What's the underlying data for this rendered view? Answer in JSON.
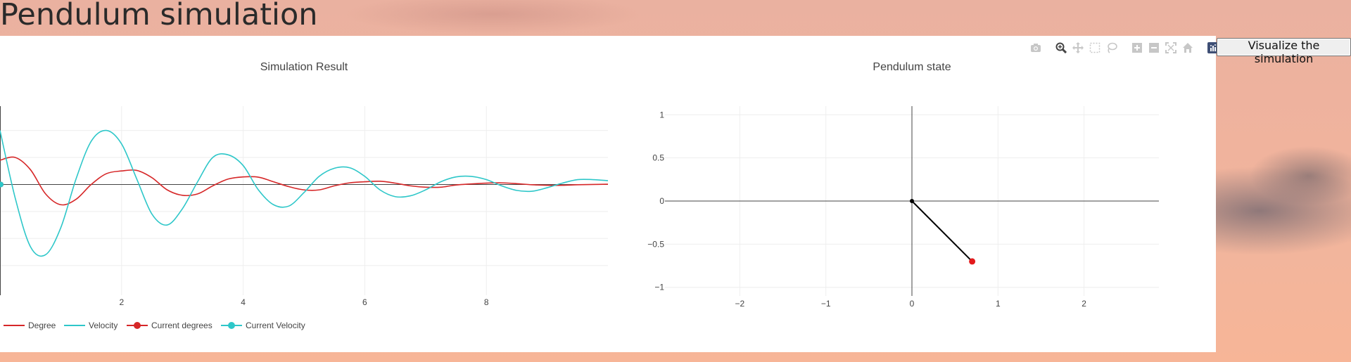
{
  "page": {
    "title": "Pendulum simulation"
  },
  "button": {
    "visualize_label": "Visualize the simulation"
  },
  "modebar": {
    "tools": [
      "camera-icon",
      "zoom-icon",
      "pan-icon",
      "box-select-icon",
      "lasso-select-icon",
      "zoom-in-icon",
      "zoom-out-icon",
      "autoscale-icon",
      "reset-axes-icon",
      "plotly-logo-icon"
    ]
  },
  "colors": {
    "degree": "#d62728",
    "velocity": "#2ec7c9",
    "bob": "#e31a1c"
  },
  "chart_data": [
    {
      "type": "line",
      "title": "Simulation Result",
      "xlabel": "",
      "ylabel": "",
      "x_ticks": [
        2,
        4,
        6,
        8
      ],
      "xlim": [
        0,
        10
      ],
      "ylim": [
        -4.1,
        2.9
      ],
      "grid": true,
      "legend_position": "bottom-left",
      "series": [
        {
          "name": "Degree",
          "x": [
            0,
            0.25,
            0.5,
            0.75,
            1,
            1.25,
            1.5,
            1.75,
            2,
            2.25,
            2.5,
            2.75,
            3,
            3.25,
            3.5,
            3.75,
            4,
            4.25,
            4.5,
            4.75,
            5,
            5.25,
            5.5,
            5.75,
            6,
            6.25,
            6.5,
            6.75,
            7,
            7.25,
            7.5,
            7.75,
            8,
            8.25,
            8.5,
            8.75,
            9,
            9.25,
            9.5,
            9.75,
            10
          ],
          "y": [
            0.9,
            1.0,
            0.55,
            -0.35,
            -0.75,
            -0.55,
            0.0,
            0.4,
            0.5,
            0.52,
            0.25,
            -0.2,
            -0.4,
            -0.35,
            -0.05,
            0.2,
            0.28,
            0.27,
            0.1,
            -0.08,
            -0.2,
            -0.2,
            -0.05,
            0.06,
            0.1,
            0.12,
            0.05,
            -0.05,
            -0.1,
            -0.1,
            -0.02,
            0.02,
            0.05,
            0.06,
            0.03,
            -0.01,
            -0.03,
            -0.03,
            -0.01,
            0.0,
            0.01
          ]
        },
        {
          "name": "Velocity",
          "x": [
            0,
            0.25,
            0.5,
            0.75,
            1,
            1.25,
            1.5,
            1.75,
            2,
            2.25,
            2.5,
            2.75,
            3,
            3.25,
            3.5,
            3.75,
            4,
            4.25,
            4.5,
            4.75,
            5,
            5.25,
            5.5,
            5.75,
            6,
            6.25,
            6.5,
            6.75,
            7,
            7.25,
            7.5,
            7.75,
            8,
            8.25,
            8.5,
            8.75,
            9,
            9.25,
            9.5,
            9.75,
            10
          ],
          "y": [
            2.0,
            -0.5,
            -2.3,
            -2.6,
            -1.6,
            0.2,
            1.6,
            2.0,
            1.5,
            0.2,
            -1.1,
            -1.5,
            -0.9,
            0.1,
            1.0,
            1.1,
            0.7,
            -0.2,
            -0.75,
            -0.8,
            -0.3,
            0.3,
            0.6,
            0.62,
            0.3,
            -0.2,
            -0.45,
            -0.42,
            -0.2,
            0.1,
            0.28,
            0.3,
            0.18,
            -0.05,
            -0.22,
            -0.25,
            -0.12,
            0.05,
            0.18,
            0.18,
            0.14
          ]
        }
      ],
      "markers": [
        {
          "name": "Current degrees",
          "x": 0,
          "y": 0
        },
        {
          "name": "Current Velocity",
          "x": 0,
          "y": 0
        }
      ]
    },
    {
      "type": "scatter",
      "title": "Pendulum state",
      "x_ticks": [
        "−2",
        "−1",
        "0",
        "1",
        "2"
      ],
      "y_ticks": [
        "1",
        "0.5",
        "0",
        "−0.5",
        "−1"
      ],
      "xlim": [
        -2.87,
        2.87
      ],
      "ylim": [
        -1.1,
        1.1
      ],
      "grid": true,
      "pivot": {
        "x": 0,
        "y": 0
      },
      "bob": {
        "x": 0.7,
        "y": -0.7
      }
    }
  ]
}
